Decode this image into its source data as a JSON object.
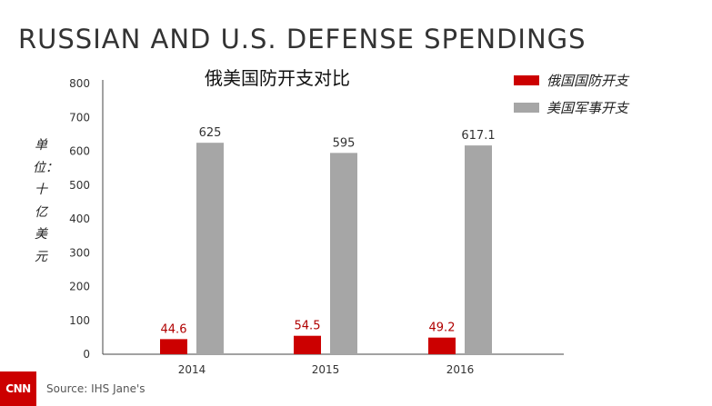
{
  "headline": "RUSSIAN AND U.S. DEFENSE SPENDINGS",
  "chart_data": {
    "type": "bar",
    "title": "俄美国防开支对比",
    "ylabel": "单位：十亿美元",
    "xlabel": "",
    "categories": [
      "2014",
      "2015",
      "2016"
    ],
    "series": [
      {
        "name": "俄国国防开支",
        "values": [
          44.6,
          54.5,
          49.2
        ],
        "labels": [
          "44.6",
          "54.5",
          "49.2"
        ],
        "color": "#cc0000",
        "label_color": "#b00000"
      },
      {
        "name": "美国军事开支",
        "values": [
          625,
          595,
          617.1
        ],
        "labels": [
          "625",
          "595",
          "617.1"
        ],
        "color": "#a6a6a6",
        "label_color": "#333333"
      }
    ],
    "ylim": [
      0,
      800
    ],
    "yticks": [
      "0",
      "100",
      "200",
      "300",
      "400",
      "500",
      "600",
      "700",
      "800"
    ],
    "grid": false,
    "legend": "top-right"
  },
  "footer": {
    "logo_text": "CNN",
    "source": "Source: IHS Jane's"
  }
}
